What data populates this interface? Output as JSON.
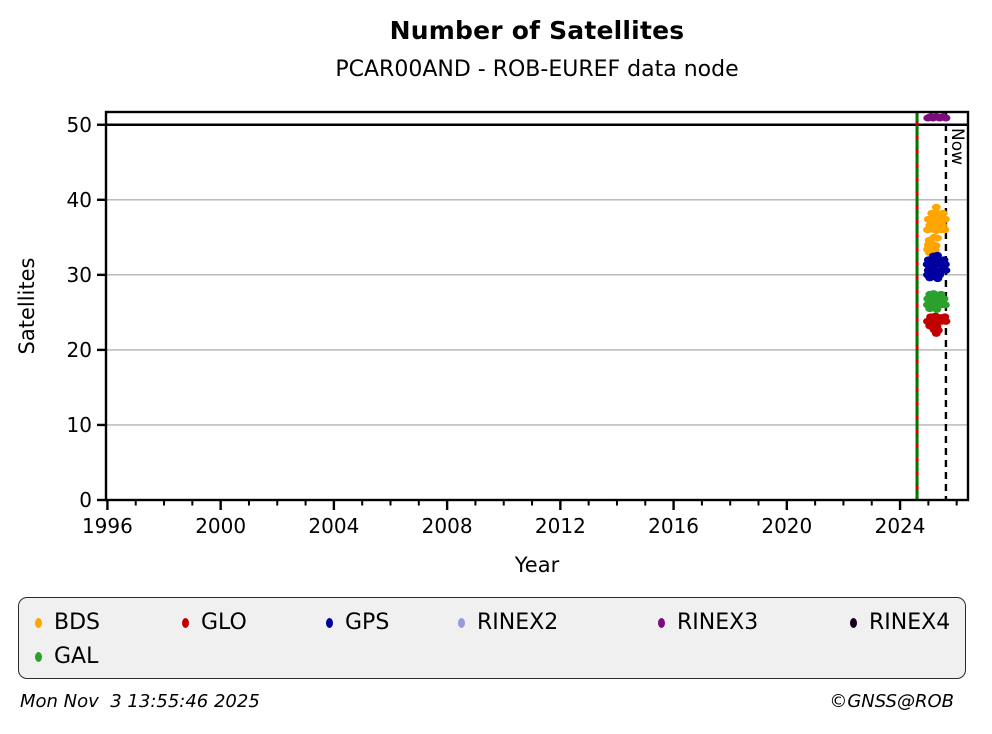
{
  "footer": {
    "timestamp": "Mon Nov  3 13:55:46 2025",
    "credit": "©GNSS@ROB"
  },
  "chart_data": {
    "type": "scatter",
    "title": "Number of Satellites",
    "subtitle": "PCAR00AND - ROB-EUREF data node",
    "xlabel": "Year",
    "ylabel": "Satellites",
    "xlim": [
      1995.95,
      2026.4
    ],
    "ylim": [
      0,
      51.7
    ],
    "xticks": [
      1996,
      2000,
      2004,
      2008,
      2012,
      2016,
      2020,
      2024
    ],
    "x_minor_tick_step": 1,
    "yticks": [
      0,
      10,
      20,
      30,
      40,
      50
    ],
    "grid": "horizontal-gray",
    "gridline_color": "#b3b3b3",
    "reference_line": {
      "y": 50,
      "color": "#000000",
      "style": "solid"
    },
    "station_line": {
      "x": 2024.6,
      "style": "dashed",
      "colors": [
        "#007800",
        "#cc0000"
      ]
    },
    "now_line": {
      "x": 2025.62,
      "label": "Now",
      "style": "dashed",
      "color": "#000000"
    },
    "legend_position": "bottom",
    "series": [
      {
        "name": "BDS",
        "color": "#ffa500",
        "points": [
          [
            2025.28,
            39.0
          ],
          [
            2025.12,
            38.2
          ],
          [
            2025.26,
            38.3
          ],
          [
            2025.4,
            38.1
          ],
          [
            2025.52,
            38.2
          ],
          [
            2025.0,
            37.4
          ],
          [
            2025.15,
            37.5
          ],
          [
            2025.3,
            37.3
          ],
          [
            2025.45,
            37.4
          ],
          [
            2025.6,
            37.4
          ],
          [
            2025.05,
            36.6
          ],
          [
            2025.2,
            36.7
          ],
          [
            2025.35,
            36.5
          ],
          [
            2025.5,
            36.6
          ],
          [
            2024.97,
            36.0
          ],
          [
            2025.1,
            36.1
          ],
          [
            2025.28,
            35.9
          ],
          [
            2025.45,
            36.0
          ],
          [
            2025.58,
            36.0
          ],
          [
            2025.2,
            35.0
          ],
          [
            2025.32,
            34.9
          ],
          [
            2025.03,
            34.6
          ],
          [
            2025.0,
            34.0
          ],
          [
            2025.13,
            34.1
          ],
          [
            2025.27,
            33.9
          ],
          [
            2024.97,
            33.4
          ],
          [
            2025.1,
            33.5
          ],
          [
            2025.24,
            33.3
          ],
          [
            2025.03,
            33.0
          ],
          [
            2025.17,
            32.9
          ]
        ]
      },
      {
        "name": "GLO",
        "color": "#c00000",
        "points": [
          [
            2025.08,
            24.4
          ],
          [
            2025.25,
            24.5
          ],
          [
            2025.42,
            24.3
          ],
          [
            2025.58,
            24.4
          ],
          [
            2024.97,
            23.8
          ],
          [
            2025.1,
            23.9
          ],
          [
            2025.28,
            23.7
          ],
          [
            2025.45,
            23.8
          ],
          [
            2025.62,
            23.8
          ],
          [
            2025.05,
            23.2
          ],
          [
            2025.3,
            23.1
          ],
          [
            2025.2,
            22.7
          ],
          [
            2025.35,
            22.6
          ],
          [
            2025.28,
            22.2
          ]
        ]
      },
      {
        "name": "GPS",
        "color": "#0000a0",
        "points": [
          [
            2025.18,
            32.5
          ],
          [
            2025.32,
            32.6
          ],
          [
            2025.0,
            32.0
          ],
          [
            2025.12,
            32.1
          ],
          [
            2025.27,
            31.9
          ],
          [
            2025.42,
            32.0
          ],
          [
            2025.55,
            32.0
          ],
          [
            2024.96,
            31.4
          ],
          [
            2025.08,
            31.5
          ],
          [
            2025.22,
            31.3
          ],
          [
            2025.38,
            31.4
          ],
          [
            2025.6,
            31.4
          ],
          [
            2025.0,
            30.6
          ],
          [
            2025.15,
            30.7
          ],
          [
            2025.3,
            30.5
          ],
          [
            2025.48,
            30.6
          ],
          [
            2025.62,
            30.6
          ],
          [
            2024.97,
            30.0
          ],
          [
            2025.1,
            30.1
          ],
          [
            2025.25,
            29.9
          ],
          [
            2025.4,
            30.0
          ],
          [
            2025.05,
            29.6
          ],
          [
            2025.33,
            29.5
          ]
        ]
      },
      {
        "name": "RINEX2",
        "color": "#9999dd",
        "points": []
      },
      {
        "name": "RINEX3",
        "color": "#7d0c7d",
        "points": [
          [
            2024.98,
            50.9
          ],
          [
            2025.04,
            51.0
          ],
          [
            2025.1,
            51.1
          ],
          [
            2025.16,
            50.9
          ],
          [
            2025.22,
            51.0
          ],
          [
            2025.28,
            51.1
          ],
          [
            2025.34,
            51.0
          ],
          [
            2025.4,
            50.9
          ],
          [
            2025.46,
            51.0
          ],
          [
            2025.52,
            51.1
          ],
          [
            2025.58,
            51.0
          ],
          [
            2025.62,
            50.9
          ]
        ]
      },
      {
        "name": "RINEX4",
        "color": "#16001e",
        "points": []
      },
      {
        "name": "GAL",
        "color": "#2ca02c",
        "points": [
          [
            2025.05,
            27.4
          ],
          [
            2025.18,
            27.5
          ],
          [
            2025.32,
            27.3
          ],
          [
            2025.45,
            27.4
          ],
          [
            2024.98,
            26.8
          ],
          [
            2025.12,
            26.9
          ],
          [
            2025.27,
            26.7
          ],
          [
            2025.42,
            26.8
          ],
          [
            2025.55,
            26.8
          ],
          [
            2024.97,
            26.0
          ],
          [
            2025.1,
            26.1
          ],
          [
            2025.26,
            25.9
          ],
          [
            2025.44,
            26.0
          ],
          [
            2025.6,
            26.0
          ],
          [
            2025.05,
            25.5
          ],
          [
            2025.3,
            25.4
          ]
        ]
      }
    ]
  }
}
